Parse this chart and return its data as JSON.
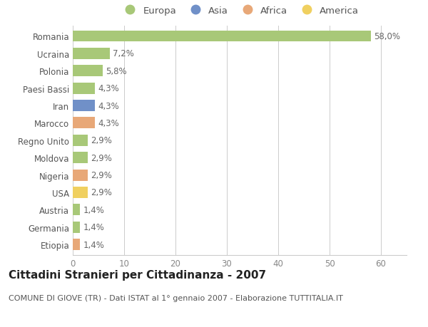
{
  "countries": [
    "Romania",
    "Ucraina",
    "Polonia",
    "Paesi Bassi",
    "Iran",
    "Marocco",
    "Regno Unito",
    "Moldova",
    "Nigeria",
    "USA",
    "Austria",
    "Germania",
    "Etiopia"
  ],
  "values": [
    58.0,
    7.2,
    5.8,
    4.3,
    4.3,
    4.3,
    2.9,
    2.9,
    2.9,
    2.9,
    1.4,
    1.4,
    1.4
  ],
  "labels": [
    "58,0%",
    "7,2%",
    "5,8%",
    "4,3%",
    "4,3%",
    "4,3%",
    "2,9%",
    "2,9%",
    "2,9%",
    "2,9%",
    "1,4%",
    "1,4%",
    "1,4%"
  ],
  "colors": [
    "#a8c878",
    "#a8c878",
    "#a8c878",
    "#a8c878",
    "#7090c8",
    "#e8a878",
    "#a8c878",
    "#a8c878",
    "#e8a878",
    "#f0d060",
    "#a8c878",
    "#a8c878",
    "#e8a878"
  ],
  "legend_labels": [
    "Europa",
    "Asia",
    "Africa",
    "America"
  ],
  "legend_colors": [
    "#a8c878",
    "#7090c8",
    "#e8a878",
    "#f0d060"
  ],
  "title": "Cittadini Stranieri per Cittadinanza - 2007",
  "subtitle": "COMUNE DI GIOVE (TR) - Dati ISTAT al 1° gennaio 2007 - Elaborazione TUTTITALIA.IT",
  "xlim": [
    0,
    65
  ],
  "xticks": [
    0,
    10,
    20,
    30,
    40,
    50,
    60
  ],
  "background_color": "#ffffff",
  "grid_color": "#cccccc",
  "bar_height": 0.65,
  "label_fontsize": 8.5,
  "title_fontsize": 11,
  "subtitle_fontsize": 8,
  "tick_fontsize": 8.5,
  "legend_fontsize": 9.5
}
